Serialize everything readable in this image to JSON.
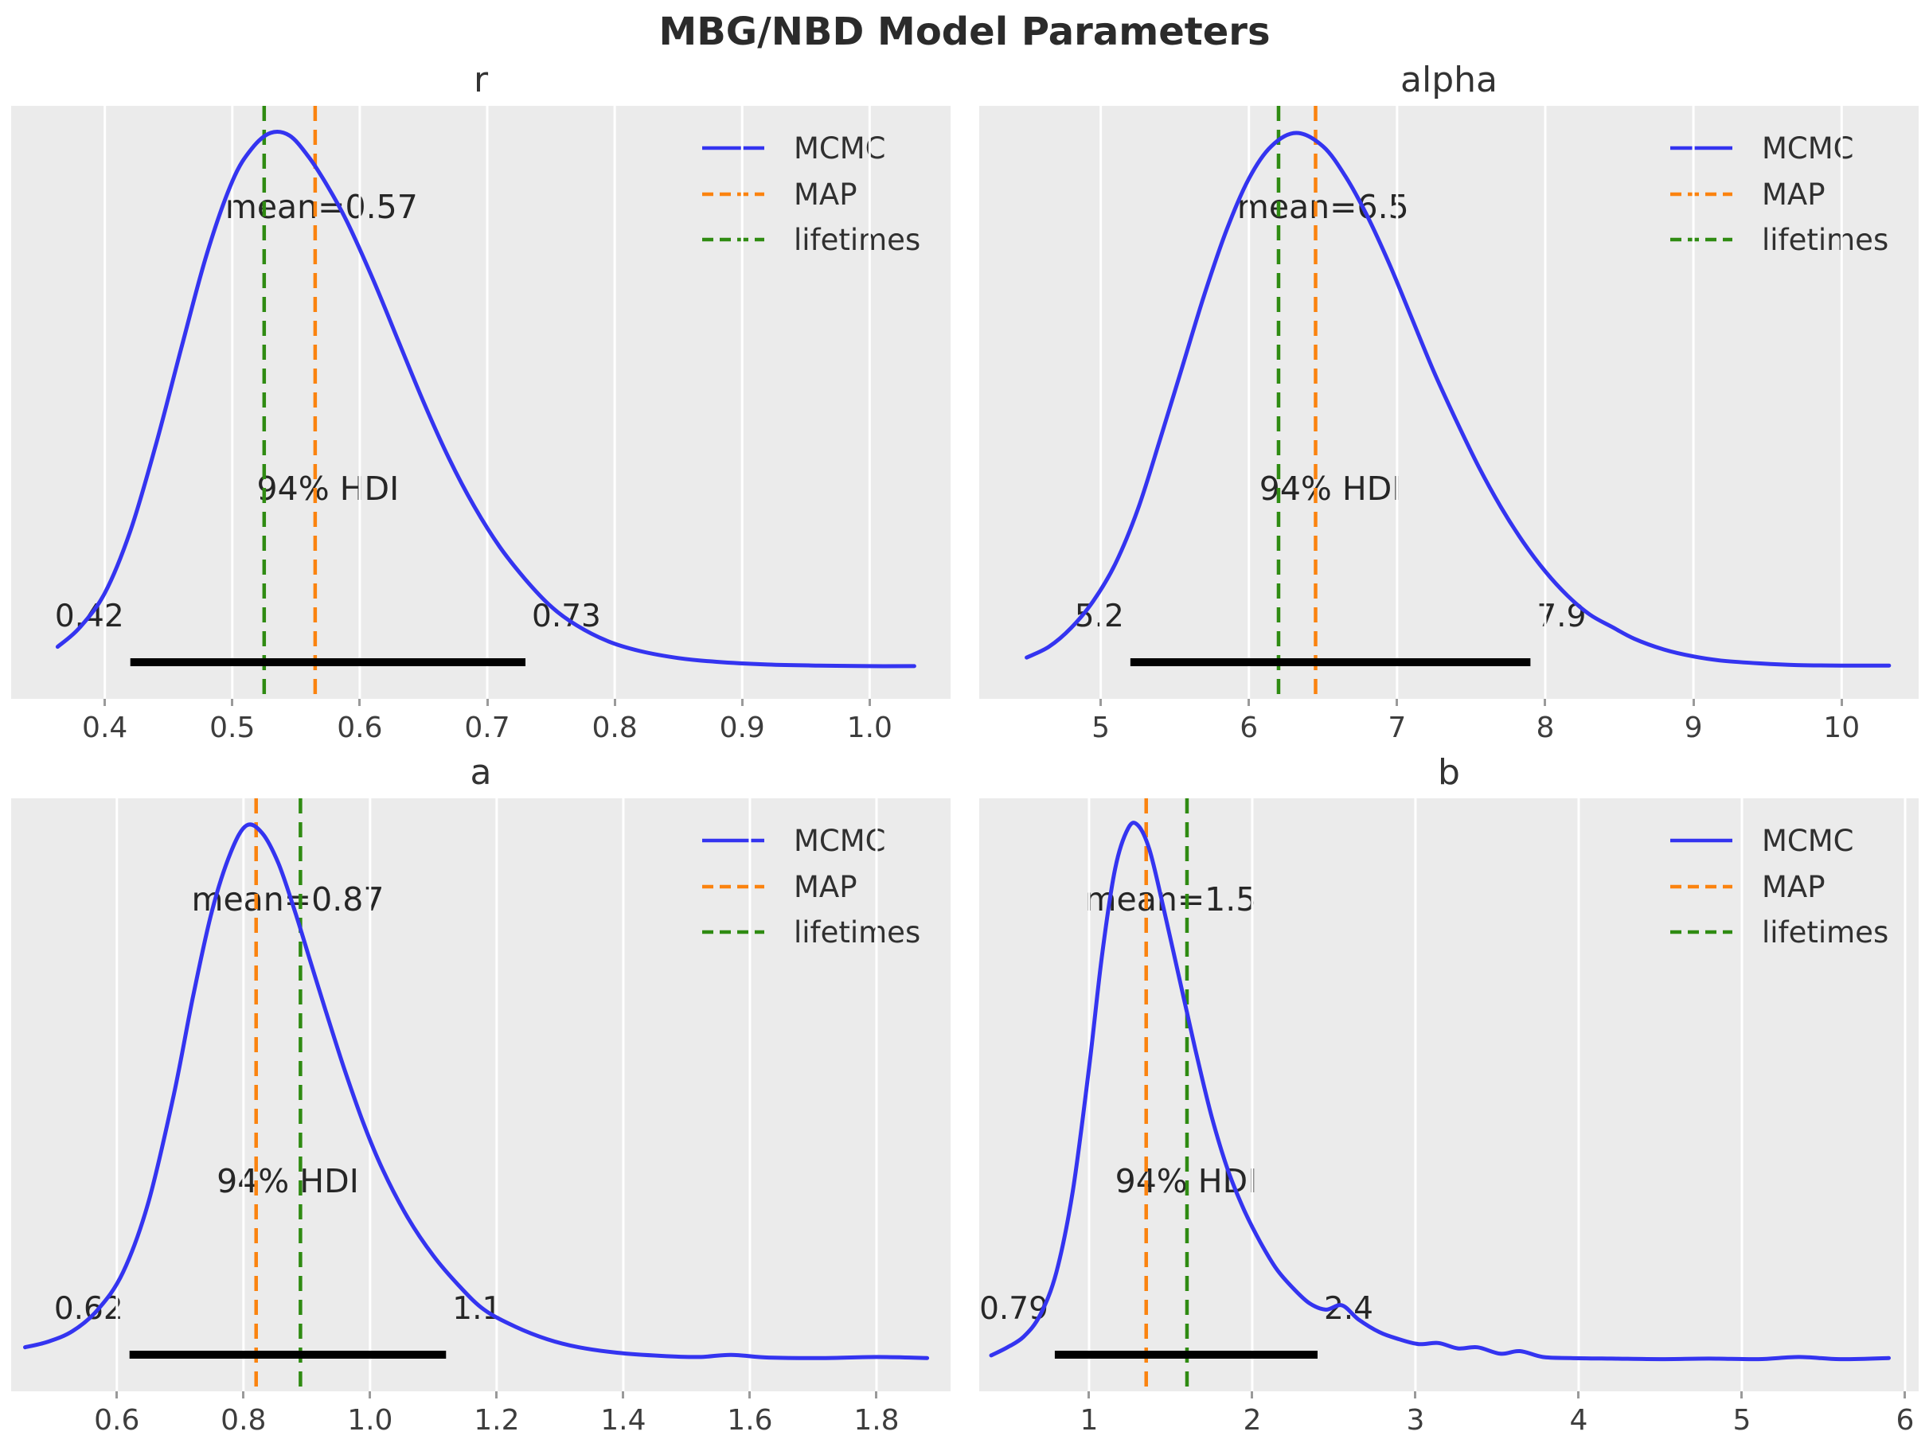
{
  "figure": {
    "title": "MBG/NBD Model Parameters"
  },
  "colors": {
    "figure_bg": "#ffffff",
    "plot_bg": "#ebebeb",
    "grid": "#ffffff",
    "mcmc_curve": "#3434f0",
    "map_line": "#fb830f",
    "lifetimes_line": "#2f8b12",
    "hdi_bar": "#000000",
    "tick_mark": "#9a9a9a"
  },
  "legend": {
    "position": "upper-right",
    "items": [
      {
        "label": "MCMC",
        "color": "#3434f0",
        "dashed": false
      },
      {
        "label": "MAP",
        "color": "#fb830f",
        "dashed": true
      },
      {
        "label": "lifetimes",
        "color": "#2f8b12",
        "dashed": true
      }
    ]
  },
  "chart_data": [
    {
      "type": "line",
      "subtype": "kde-posterior",
      "title": "r",
      "mean": 0.57,
      "mean_label": "mean=0.57",
      "hdi_label": "94% HDI",
      "hdi": [
        0.42,
        0.73
      ],
      "hdi_min_label": "0.42",
      "hdi_max_label": "0.73",
      "map_vline": 0.565,
      "lifetimes_vline": 0.525,
      "xlim": [
        0.3265,
        1.0635
      ],
      "xticks": [
        0.4,
        0.5,
        0.6,
        0.7,
        0.8,
        0.9,
        1.0
      ],
      "xtick_labels": [
        "0.4",
        "0.5",
        "0.6",
        "0.7",
        "0.8",
        "0.9",
        "1.0"
      ],
      "grid": "vertical",
      "curve": [
        [
          0.363,
          0.045
        ],
        [
          0.38,
          0.08
        ],
        [
          0.4,
          0.145
        ],
        [
          0.42,
          0.26
        ],
        [
          0.44,
          0.42
        ],
        [
          0.46,
          0.6
        ],
        [
          0.48,
          0.775
        ],
        [
          0.5,
          0.91
        ],
        [
          0.515,
          0.97
        ],
        [
          0.53,
          1.0
        ],
        [
          0.545,
          0.995
        ],
        [
          0.56,
          0.955
        ],
        [
          0.575,
          0.9
        ],
        [
          0.59,
          0.835
        ],
        [
          0.61,
          0.73
        ],
        [
          0.63,
          0.615
        ],
        [
          0.65,
          0.5
        ],
        [
          0.67,
          0.395
        ],
        [
          0.69,
          0.305
        ],
        [
          0.71,
          0.23
        ],
        [
          0.73,
          0.17
        ],
        [
          0.75,
          0.12
        ],
        [
          0.77,
          0.085
        ],
        [
          0.795,
          0.055
        ],
        [
          0.82,
          0.037
        ],
        [
          0.85,
          0.024
        ],
        [
          0.88,
          0.017
        ],
        [
          0.92,
          0.012
        ],
        [
          0.96,
          0.01
        ],
        [
          1.0,
          0.009
        ],
        [
          1.035,
          0.009
        ]
      ]
    },
    {
      "type": "line",
      "subtype": "kde-posterior",
      "title": "alpha",
      "mean": 6.5,
      "mean_label": "mean=6.5",
      "hdi_label": "94% HDI",
      "hdi": [
        5.2,
        7.9
      ],
      "hdi_min_label": "5.2",
      "hdi_max_label": "7.9",
      "map_vline": 6.45,
      "lifetimes_vline": 6.2,
      "xlim": [
        4.18,
        10.52
      ],
      "xticks": [
        5,
        6,
        7,
        8,
        9,
        10
      ],
      "xtick_labels": [
        "5",
        "6",
        "7",
        "8",
        "9",
        "10"
      ],
      "grid": "vertical",
      "curve": [
        [
          4.5,
          0.025
        ],
        [
          4.65,
          0.045
        ],
        [
          4.8,
          0.08
        ],
        [
          4.95,
          0.13
        ],
        [
          5.1,
          0.2
        ],
        [
          5.25,
          0.3
        ],
        [
          5.4,
          0.43
        ],
        [
          5.55,
          0.565
        ],
        [
          5.7,
          0.7
        ],
        [
          5.85,
          0.82
        ],
        [
          6.0,
          0.915
        ],
        [
          6.15,
          0.975
        ],
        [
          6.32,
          1.0
        ],
        [
          6.5,
          0.975
        ],
        [
          6.65,
          0.92
        ],
        [
          6.8,
          0.845
        ],
        [
          6.95,
          0.755
        ],
        [
          7.1,
          0.655
        ],
        [
          7.25,
          0.555
        ],
        [
          7.4,
          0.465
        ],
        [
          7.55,
          0.38
        ],
        [
          7.7,
          0.305
        ],
        [
          7.85,
          0.24
        ],
        [
          8.0,
          0.185
        ],
        [
          8.15,
          0.14
        ],
        [
          8.3,
          0.105
        ],
        [
          8.45,
          0.082
        ],
        [
          8.6,
          0.06
        ],
        [
          8.8,
          0.04
        ],
        [
          9.0,
          0.027
        ],
        [
          9.2,
          0.019
        ],
        [
          9.45,
          0.014
        ],
        [
          9.7,
          0.011
        ],
        [
          10.0,
          0.01
        ],
        [
          10.32,
          0.01
        ]
      ]
    },
    {
      "type": "line",
      "subtype": "kde-posterior",
      "title": "a",
      "mean": 0.87,
      "mean_label": "mean=0.87",
      "hdi_label": "94% HDI",
      "hdi": [
        0.62,
        1.12
      ],
      "hdi_min_label": "0.62",
      "hdi_max_label": "1.1",
      "map_vline": 0.82,
      "lifetimes_vline": 0.89,
      "xlim": [
        0.433,
        1.917
      ],
      "xticks": [
        0.6,
        0.8,
        1.0,
        1.2,
        1.4,
        1.6,
        1.8
      ],
      "xtick_labels": [
        "0.6",
        "0.8",
        "1.0",
        "1.2",
        "1.4",
        "1.6",
        "1.8"
      ],
      "grid": "vertical",
      "curve": [
        [
          0.455,
          0.03
        ],
        [
          0.49,
          0.04
        ],
        [
          0.53,
          0.06
        ],
        [
          0.57,
          0.1
        ],
        [
          0.61,
          0.17
        ],
        [
          0.65,
          0.3
        ],
        [
          0.69,
          0.5
        ],
        [
          0.72,
          0.68
        ],
        [
          0.75,
          0.84
        ],
        [
          0.78,
          0.95
        ],
        [
          0.805,
          1.0
        ],
        [
          0.83,
          0.985
        ],
        [
          0.855,
          0.93
        ],
        [
          0.88,
          0.845
        ],
        [
          0.905,
          0.75
        ],
        [
          0.93,
          0.655
        ],
        [
          0.96,
          0.545
        ],
        [
          0.99,
          0.445
        ],
        [
          1.02,
          0.36
        ],
        [
          1.06,
          0.27
        ],
        [
          1.1,
          0.2
        ],
        [
          1.14,
          0.145
        ],
        [
          1.18,
          0.1
        ],
        [
          1.23,
          0.068
        ],
        [
          1.28,
          0.045
        ],
        [
          1.33,
          0.03
        ],
        [
          1.39,
          0.02
        ],
        [
          1.46,
          0.014
        ],
        [
          1.52,
          0.012
        ],
        [
          1.57,
          0.016
        ],
        [
          1.63,
          0.011
        ],
        [
          1.72,
          0.01
        ],
        [
          1.8,
          0.012
        ],
        [
          1.88,
          0.01
        ]
      ]
    },
    {
      "type": "line",
      "subtype": "kde-posterior",
      "title": "b",
      "mean": 1.5,
      "mean_label": "mean=1.5",
      "hdi_label": "94% HDI",
      "hdi": [
        0.79,
        2.4
      ],
      "hdi_min_label": "0.79",
      "hdi_max_label": "2.4",
      "map_vline": 1.35,
      "lifetimes_vline": 1.6,
      "xlim": [
        0.327,
        6.083
      ],
      "xticks": [
        1,
        2,
        3,
        4,
        5,
        6
      ],
      "xtick_labels": [
        "1",
        "2",
        "3",
        "4",
        "5",
        "6"
      ],
      "grid": "vertical",
      "curve": [
        [
          0.4,
          0.015
        ],
        [
          0.5,
          0.03
        ],
        [
          0.6,
          0.05
        ],
        [
          0.7,
          0.09
        ],
        [
          0.8,
          0.17
        ],
        [
          0.9,
          0.32
        ],
        [
          1.0,
          0.55
        ],
        [
          1.08,
          0.76
        ],
        [
          1.16,
          0.92
        ],
        [
          1.24,
          0.995
        ],
        [
          1.3,
          1.0
        ],
        [
          1.37,
          0.955
        ],
        [
          1.45,
          0.855
        ],
        [
          1.55,
          0.72
        ],
        [
          1.65,
          0.585
        ],
        [
          1.75,
          0.46
        ],
        [
          1.85,
          0.36
        ],
        [
          1.95,
          0.285
        ],
        [
          2.05,
          0.225
        ],
        [
          2.15,
          0.175
        ],
        [
          2.25,
          0.14
        ],
        [
          2.35,
          0.112
        ],
        [
          2.45,
          0.1
        ],
        [
          2.55,
          0.108
        ],
        [
          2.65,
          0.082
        ],
        [
          2.78,
          0.058
        ],
        [
          2.9,
          0.045
        ],
        [
          3.02,
          0.036
        ],
        [
          3.14,
          0.038
        ],
        [
          3.26,
          0.028
        ],
        [
          3.38,
          0.03
        ],
        [
          3.52,
          0.018
        ],
        [
          3.64,
          0.023
        ],
        [
          3.78,
          0.012
        ],
        [
          3.95,
          0.01
        ],
        [
          4.2,
          0.009
        ],
        [
          4.5,
          0.008
        ],
        [
          4.8,
          0.009
        ],
        [
          5.1,
          0.008
        ],
        [
          5.35,
          0.012
        ],
        [
          5.6,
          0.008
        ],
        [
          5.9,
          0.01
        ]
      ]
    }
  ]
}
